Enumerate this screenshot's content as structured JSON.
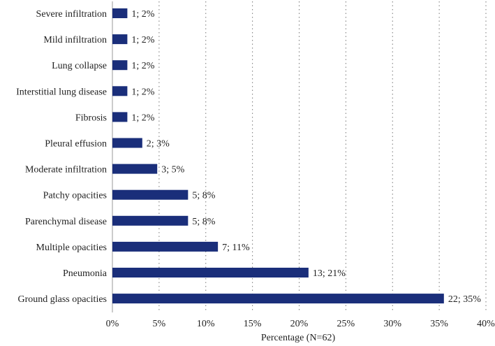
{
  "chart_data": {
    "type": "bar",
    "orientation": "horizontal",
    "categories": [
      "Severe infiltration",
      "Mild infiltration",
      "Lung collapse",
      "Interstitial lung disease",
      "Fibrosis",
      "Pleural effusion",
      "Moderate infiltration",
      "Patchy opacities",
      "Parenchymal disease",
      "Multiple opacities",
      "Pneumonia",
      "Ground glass opacities"
    ],
    "values": [
      1.6,
      1.6,
      1.6,
      1.6,
      1.6,
      3.2,
      4.8,
      8.1,
      8.1,
      11.3,
      21.0,
      35.5
    ],
    "data_labels": [
      "1; 2%",
      "1; 2%",
      "1; 2%",
      "1; 2%",
      "1; 2%",
      "2; 3%",
      "3; 5%",
      "5; 8%",
      "5; 8%",
      "7; 11%",
      "13; 21%",
      "22; 35%"
    ],
    "xlabel": "Percentage (N=62)",
    "xlim": [
      0,
      40
    ],
    "xticks": [
      0,
      5,
      10,
      15,
      20,
      25,
      30,
      35,
      40
    ],
    "xtick_labels": [
      "0%",
      "5%",
      "10%",
      "15%",
      "20%",
      "25%",
      "30%",
      "35%",
      "40%"
    ],
    "grid": "vertical-dotted",
    "bar_color": "#1a2e7a"
  }
}
